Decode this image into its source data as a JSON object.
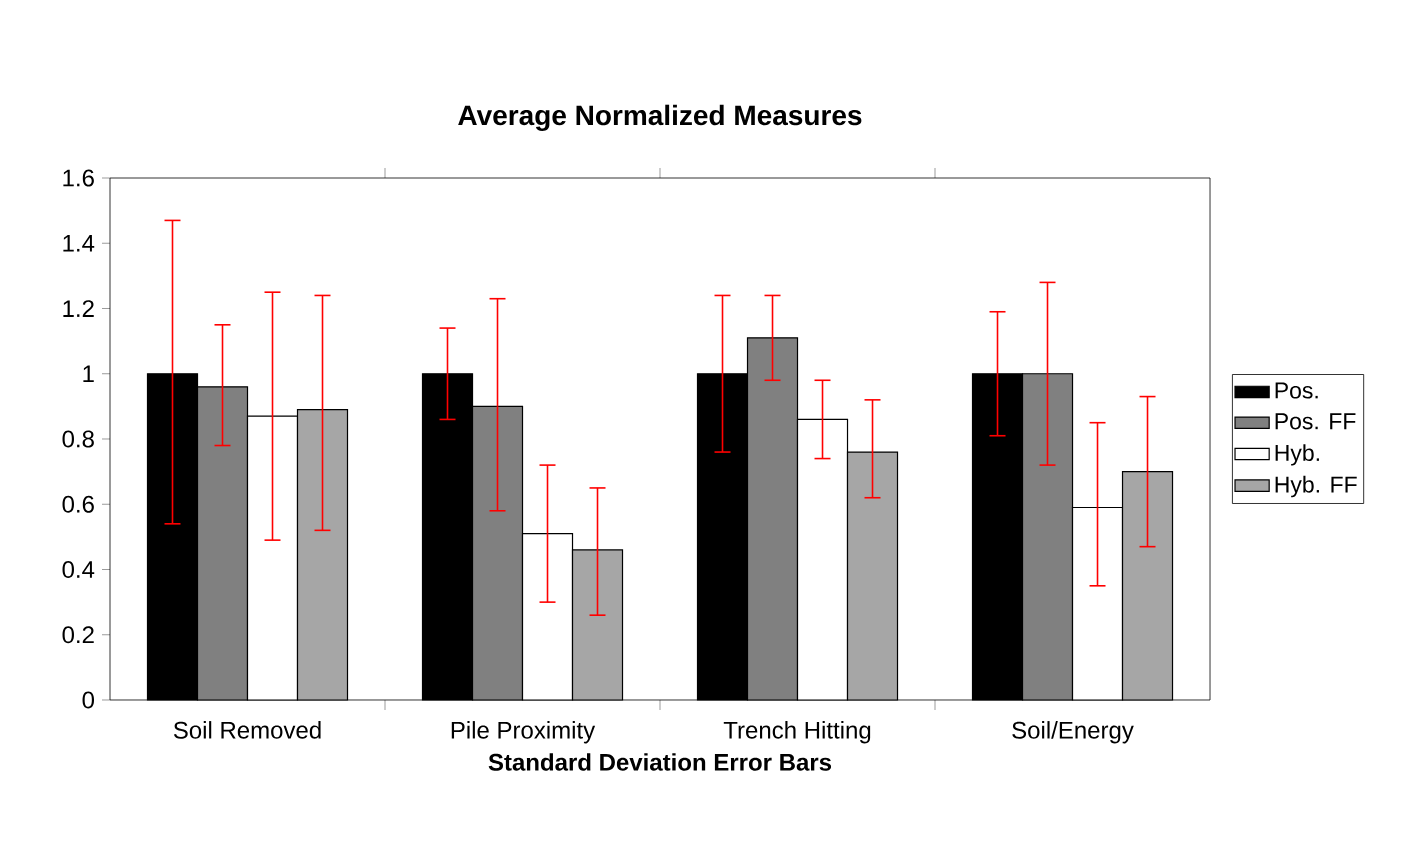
{
  "chart_data": {
    "type": "bar",
    "title": "Average Normalized Measures",
    "xlabel": "Standard Deviation Error Bars",
    "categories": [
      "Soil Removed",
      "Pile Proximity",
      "Trench Hitting",
      "Soil/Energy"
    ],
    "series": [
      {
        "name": "Pos.",
        "color": "#000000",
        "values": [
          1,
          1,
          1,
          1
        ],
        "errors": [
          [
            0.54,
            1.47
          ],
          [
            0.86,
            1.14
          ],
          [
            0.76,
            1.24
          ],
          [
            0.81,
            1.19
          ]
        ]
      },
      {
        "name": "Pos. FF",
        "color": "#808080",
        "values": [
          0.96,
          0.9,
          1.11,
          1
        ],
        "errors": [
          [
            0.78,
            1.15
          ],
          [
            0.58,
            1.23
          ],
          [
            0.98,
            1.24
          ],
          [
            0.72,
            1.28
          ]
        ]
      },
      {
        "name": "Hyb.",
        "color": "#ffffff",
        "values": [
          0.87,
          0.51,
          0.86,
          0.59
        ],
        "errors": [
          [
            0.49,
            1.25
          ],
          [
            0.3,
            0.72
          ],
          [
            0.74,
            0.98
          ],
          [
            0.35,
            0.85
          ]
        ]
      },
      {
        "name": "Hyb. FF",
        "color": "#a6a6a6",
        "values": [
          0.89,
          0.46,
          0.76,
          0.7
        ],
        "errors": [
          [
            0.52,
            1.24
          ],
          [
            0.26,
            0.65
          ],
          [
            0.62,
            0.92
          ],
          [
            0.47,
            0.93
          ]
        ]
      }
    ],
    "ylim": [
      0,
      1.6
    ],
    "yticks": [
      0,
      0.2,
      0.4,
      0.6,
      0.8,
      1,
      1.2,
      1.4,
      1.6
    ],
    "grid": false,
    "legend": "right"
  }
}
